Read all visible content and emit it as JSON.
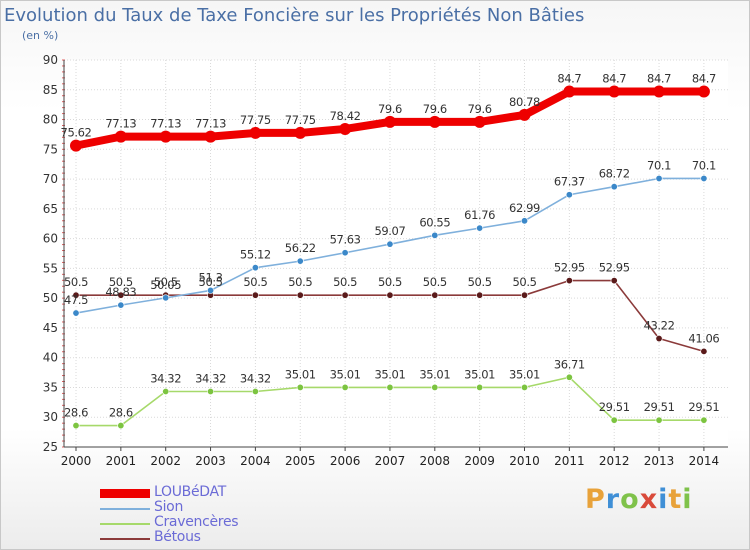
{
  "title": "Evolution du Taux de Taxe Foncière sur les Propriétés Non Bâties",
  "unit": "(en %)",
  "brand": "Proxiti",
  "brand_colors": [
    "#e8a23a",
    "#3f8fd6",
    "#7fc24a",
    "#d94a3a",
    "#3f8fd6",
    "#e8a23a",
    "#7fc24a"
  ],
  "chart_data": {
    "type": "line",
    "categories": [
      "2000",
      "2001",
      "2002",
      "2003",
      "2004",
      "2005",
      "2006",
      "2007",
      "2008",
      "2009",
      "2010",
      "2011",
      "2012",
      "2013",
      "2014"
    ],
    "ylim": [
      25,
      90
    ],
    "yticks": [
      25,
      30,
      35,
      40,
      45,
      50,
      55,
      60,
      65,
      70,
      75,
      80,
      85,
      90
    ],
    "grid": true,
    "legend": "bottom-left",
    "series": [
      {
        "name": "LOUBéDAT",
        "color": "#ee0000",
        "marker": "#ee0000",
        "values": [
          75.62,
          77.13,
          77.13,
          77.13,
          77.75,
          77.75,
          78.42,
          79.6,
          79.6,
          79.6,
          80.78,
          84.7,
          84.7,
          84.7,
          84.7
        ],
        "labels": [
          "75.62",
          "77.13",
          "77.13",
          "77.13",
          "77.75",
          "77.75",
          "78.42",
          "79.6",
          "79.6",
          "79.6",
          "80.78",
          "84.7",
          "84.7",
          "84.7",
          "84.7"
        ]
      },
      {
        "name": "Sion",
        "color": "#7fb0dc",
        "marker": "#3b88c9",
        "values": [
          47.5,
          48.83,
          50.05,
          51.3,
          55.12,
          56.22,
          57.63,
          59.07,
          60.55,
          61.76,
          62.99,
          67.37,
          68.72,
          70.1,
          70.1
        ],
        "labels": [
          "47.5",
          "48.83",
          "50.05",
          "51.3",
          "55.12",
          "56.22",
          "57.63",
          "59.07",
          "60.55",
          "61.76",
          "62.99",
          "67.37",
          "68.72",
          "70.1",
          "70.1"
        ]
      },
      {
        "name": "Cravencères",
        "color": "#a6d96a",
        "marker": "#7cc440",
        "values": [
          28.6,
          28.6,
          34.32,
          34.32,
          34.32,
          35.01,
          35.01,
          35.01,
          35.01,
          35.01,
          35.01,
          36.71,
          29.51,
          29.51,
          29.51
        ],
        "labels": [
          "28.6",
          "28.6",
          "34.32",
          "34.32",
          "34.32",
          "35.01",
          "35.01",
          "35.01",
          "35.01",
          "35.01",
          "35.01",
          "36.71",
          "29.51",
          "29.51",
          "29.51"
        ]
      },
      {
        "name": "Bétous",
        "color": "#8b3a3a",
        "marker": "#5a1a1a",
        "values": [
          50.5,
          50.5,
          50.5,
          50.5,
          50.5,
          50.5,
          50.5,
          50.5,
          50.5,
          50.5,
          50.5,
          52.95,
          52.95,
          43.22,
          41.06
        ],
        "labels": [
          "50.5",
          "50.5",
          "50.5",
          "50.5",
          "50.5",
          "50.5",
          "50.5",
          "50.5",
          "50.5",
          "50.5",
          "50.5",
          "52.95",
          "52.95",
          "43.22",
          "41.06"
        ]
      }
    ]
  }
}
